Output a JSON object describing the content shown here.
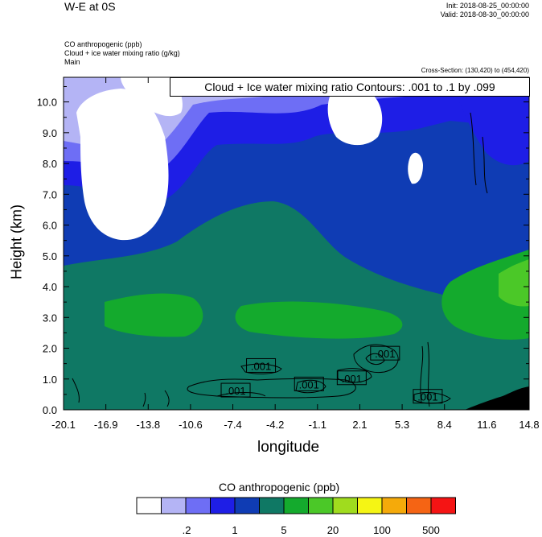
{
  "header": {
    "title": "W-E at 0S",
    "init": "Init: 2018-08-25_00:00:00",
    "valid": "Valid: 2018-08-30_00:00:00",
    "variables": [
      "CO anthropogenic   (ppb)",
      "Cloud + ice water mixing ratio   (g/kg)",
      "Main"
    ],
    "cross_section": "Cross-Section: (130,420) to (454,420)"
  },
  "chart_data": {
    "type": "heatmap",
    "contour_label": "Cloud + Ice water mixing ratio Contours: .001 to .1 by .099",
    "ylabel": "Height (km)",
    "xlabel": "longitude",
    "xlim": [
      -20.1,
      14.8
    ],
    "ylim": [
      0,
      10.8
    ],
    "x_ticks": [
      "-20.1",
      "-16.9",
      "-13.8",
      "-10.6",
      "-7.4",
      "-4.2",
      "-1.1",
      "2.1",
      "5.3",
      "8.4",
      "11.6",
      "14.8"
    ],
    "y_ticks": [
      "0.0",
      "1.0",
      "2.0",
      "3.0",
      "4.0",
      "5.0",
      "6.0",
      "7.0",
      "8.0",
      "9.0",
      "10.0"
    ],
    "y_tick_values": [
      0,
      1,
      2,
      3,
      4,
      5,
      6,
      7,
      8,
      9,
      10
    ],
    "contour_labels": [
      {
        "text": ".001",
        "x": -7.2,
        "y": 0.6
      },
      {
        "text": ".001",
        "x": -5.3,
        "y": 1.4
      },
      {
        "text": ".001",
        "x": -1.7,
        "y": 0.8
      },
      {
        "text": ".001",
        "x": 1.5,
        "y": 1.0
      },
      {
        "text": ".001",
        "x": 4.0,
        "y": 1.8
      },
      {
        "text": ".001",
        "x": 7.2,
        "y": 0.4
      }
    ],
    "colorbar": {
      "title": "CO anthropogenic  (ppb)",
      "colors": [
        "#ffffff",
        "#b4b4f5",
        "#6e6ef5",
        "#1e1ee6",
        "#0f3cb4",
        "#0f7864",
        "#14aa2d",
        "#4bc828",
        "#a0dc1e",
        "#f5f514",
        "#f5aa0a",
        "#f56414",
        "#f51414"
      ],
      "labels": [
        ".2",
        "1",
        "5",
        "20",
        "100",
        "500"
      ]
    }
  }
}
